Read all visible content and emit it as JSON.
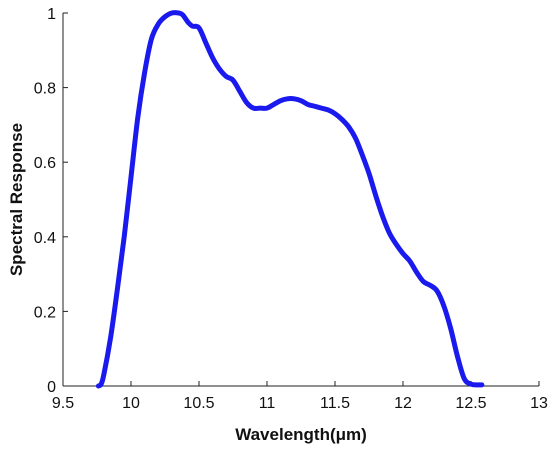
{
  "chart_data": {
    "type": "line",
    "title": "",
    "xlabel": "Wavelength(μm)",
    "ylabel": "Spectral Response",
    "xlim": [
      9.5,
      13
    ],
    "ylim": [
      0,
      1
    ],
    "x_ticks": [
      9.5,
      10,
      10.5,
      11,
      11.5,
      12,
      12.5,
      13
    ],
    "x_tick_labels": [
      "9.5",
      "10",
      "10.5",
      "11",
      "11.5",
      "12",
      "12.5",
      "13"
    ],
    "y_ticks": [
      0,
      0.2,
      0.4,
      0.6,
      0.8,
      1
    ],
    "y_tick_labels": [
      "0",
      "0.2",
      "0.4",
      "0.6",
      "0.8",
      "1"
    ],
    "grid": false,
    "legend": "none",
    "series": [
      {
        "color": "#1a1aee",
        "x": [
          9.76,
          9.78,
          9.8,
          9.85,
          9.9,
          9.95,
          10.0,
          10.05,
          10.1,
          10.15,
          10.2,
          10.25,
          10.3,
          10.35,
          10.38,
          10.42,
          10.45,
          10.5,
          10.55,
          10.6,
          10.65,
          10.7,
          10.75,
          10.8,
          10.85,
          10.9,
          10.95,
          11.0,
          11.05,
          11.1,
          11.15,
          11.2,
          11.25,
          11.3,
          11.35,
          11.4,
          11.45,
          11.5,
          11.55,
          11.6,
          11.65,
          11.7,
          11.75,
          11.8,
          11.85,
          11.9,
          11.95,
          12.0,
          12.05,
          12.1,
          12.15,
          12.2,
          12.25,
          12.3,
          12.35,
          12.4,
          12.45,
          12.5,
          12.55,
          12.58
        ],
        "y": [
          0.0,
          0.005,
          0.03,
          0.13,
          0.26,
          0.4,
          0.56,
          0.72,
          0.84,
          0.93,
          0.97,
          0.99,
          1.0,
          1.0,
          0.995,
          0.975,
          0.965,
          0.96,
          0.92,
          0.88,
          0.85,
          0.83,
          0.82,
          0.79,
          0.76,
          0.745,
          0.745,
          0.745,
          0.755,
          0.765,
          0.77,
          0.77,
          0.765,
          0.755,
          0.75,
          0.745,
          0.74,
          0.73,
          0.715,
          0.695,
          0.665,
          0.62,
          0.57,
          0.51,
          0.455,
          0.41,
          0.38,
          0.355,
          0.335,
          0.305,
          0.28,
          0.27,
          0.255,
          0.215,
          0.155,
          0.08,
          0.02,
          0.005,
          0.003,
          0.003
        ]
      }
    ]
  }
}
